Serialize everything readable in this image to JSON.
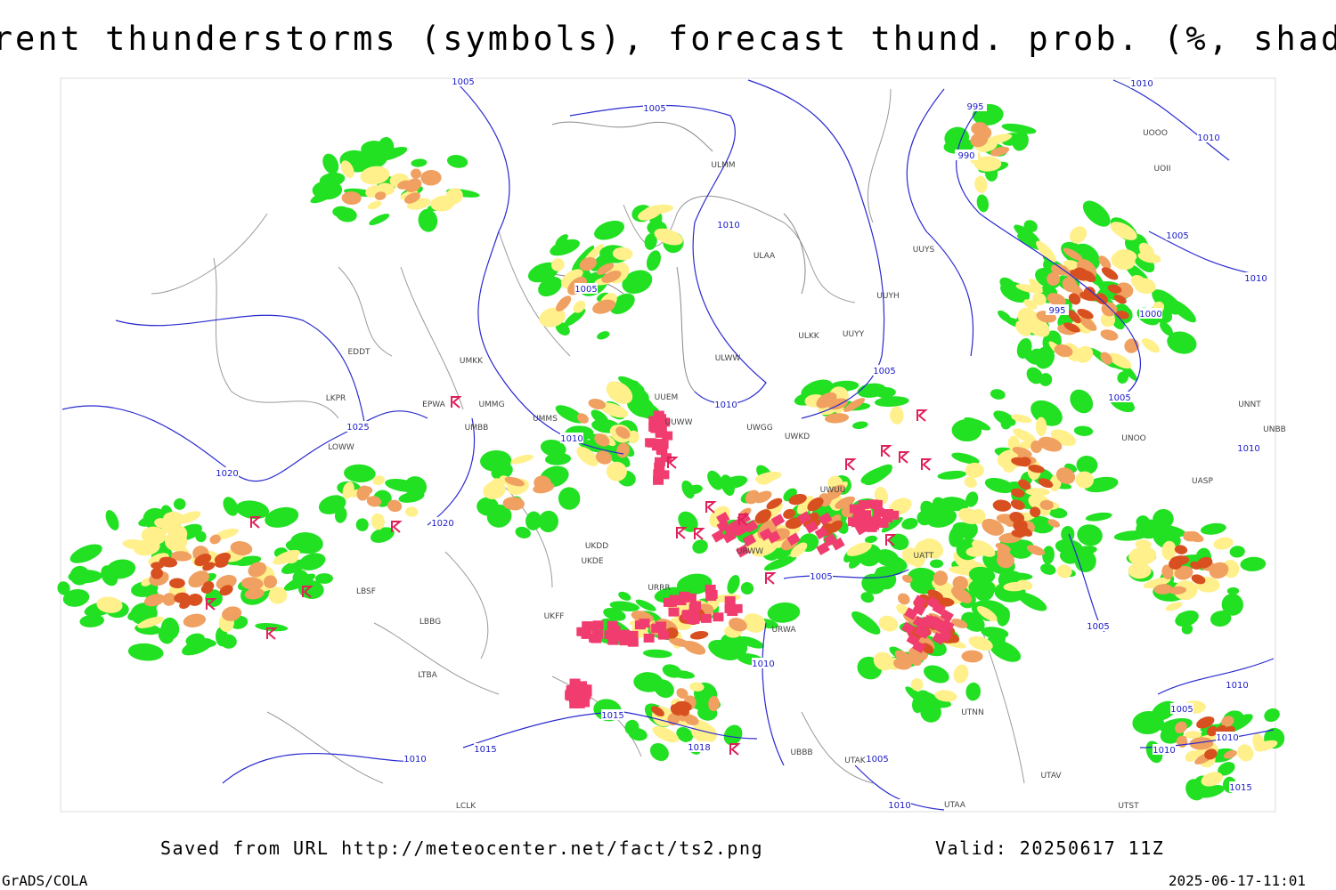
{
  "title": "Current thunderstorms (symbols), forecast thund. prob. (%, shaded)",
  "footer": {
    "saved": "Saved from URL http://meteocenter.net/fact/ts2.png",
    "valid": "Valid: 20250617 11Z",
    "software": "GrADS/COLA",
    "timestamp": "2025-06-17-11:01"
  },
  "isobar_labels": [
    "1005",
    "1005",
    "995",
    "1010",
    "1010",
    "990",
    "1010",
    "1005",
    "1010",
    "1005",
    "995",
    "1000",
    "1005",
    "1010",
    "1005",
    "1010",
    "1010",
    "1020",
    "1025",
    "1020",
    "1005",
    "1005",
    "1010",
    "1015",
    "1015",
    "1010",
    "1018",
    "1005",
    "1010",
    "1010",
    "1005",
    "1010",
    "1010",
    "1015"
  ],
  "station_labels": [
    "UUEM",
    "UUWW",
    "UMKK",
    "UMMG",
    "UMMS",
    "UMBB",
    "EPWA",
    "LKPR",
    "EDDT",
    "LOWW",
    "LBSF",
    "LBBG",
    "LTBA",
    "UKDD",
    "UKDE",
    "UKFF",
    "URRR",
    "URWW",
    "URWA",
    "UWGG",
    "UWKD",
    "UWUU",
    "UATT",
    "ULMM",
    "ULAA",
    "ULWW",
    "ULKK",
    "UUYY",
    "UUYH",
    "UUYS",
    "UOOO",
    "UOII",
    "UNNT",
    "UNBB",
    "UNOO",
    "UASP",
    "UTAK",
    "UTNN",
    "UTAV",
    "UTST",
    "UBBB",
    "LCLK",
    "UTAA"
  ]
}
